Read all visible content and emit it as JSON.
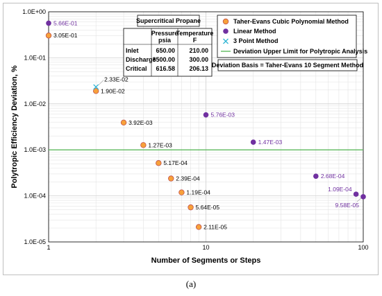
{
  "chart_data": {
    "type": "scatter",
    "xlabel": "Number of Segments or Steps",
    "ylabel": "Polytropic Efficiency  Deviation, %",
    "x_scale": "log",
    "y_scale": "log",
    "xlim": [
      1,
      100
    ],
    "ylim": [
      1e-05,
      1
    ],
    "x_ticks": [
      "1",
      "10",
      "100"
    ],
    "y_ticks": [
      "1.0E+00",
      "1.0E-01",
      "1.0E-02",
      "1.0E-03",
      "1.0E-04",
      "1.0E-05"
    ],
    "grid": true,
    "legend_position": "top-right",
    "series": [
      {
        "name": "Taher-Evans Cubic Polynomial Method",
        "marker": "circle",
        "color": "#f7a13a",
        "label_color": "#000000",
        "points": [
          {
            "x": 1,
            "y": 0.305,
            "label": "3.05E-01"
          },
          {
            "x": 2,
            "y": 0.019,
            "label": "1.90E-02"
          },
          {
            "x": 3,
            "y": 0.00392,
            "label": "3.92E-03"
          },
          {
            "x": 4,
            "y": 0.00127,
            "label": "1.27E-03"
          },
          {
            "x": 5,
            "y": 0.000517,
            "label": "5.17E-04"
          },
          {
            "x": 6,
            "y": 0.000239,
            "label": "2.39E-04"
          },
          {
            "x": 7,
            "y": 0.000119,
            "label": "1.19E-04"
          },
          {
            "x": 8,
            "y": 5.64e-05,
            "label": "5.64E-05"
          },
          {
            "x": 9,
            "y": 2.11e-05,
            "label": "2.11E-05"
          }
        ]
      },
      {
        "name": "Linear Method",
        "marker": "circle",
        "color": "#7030a0",
        "label_color": "#7030a0",
        "points": [
          {
            "x": 1,
            "y": 0.566,
            "label": "5.66E-01"
          },
          {
            "x": 10,
            "y": 0.00576,
            "label": "5.76E-03"
          },
          {
            "x": 20,
            "y": 0.00147,
            "label": "1.47E-03"
          },
          {
            "x": 50,
            "y": 0.000268,
            "label": "2.68E-04"
          },
          {
            "x": 90,
            "y": 0.000109,
            "label": "1.09E-04"
          },
          {
            "x": 100,
            "y": 9.58e-05,
            "label": "9.58E-05"
          }
        ]
      },
      {
        "name": "3 Point Method",
        "marker": "x",
        "color": "#2fb5d4",
        "label_color": "#000000",
        "points": [
          {
            "x": 2,
            "y": 0.0233,
            "label": "2.33E-02"
          }
        ]
      }
    ],
    "reference_line": {
      "name": "Deviation Upper Limit for Polytropic Analysis",
      "y": 0.001,
      "color": "#5cb85c"
    },
    "annotation_box": "Deviation Basis = Taher-Evans 10 Segment Method",
    "table": {
      "title": "Supercritical Propane",
      "headers": [
        "",
        "Pressure\npsia",
        "Temperature\nF"
      ],
      "header_line1": [
        "",
        "Pressure",
        "Temperature"
      ],
      "header_line2": [
        "",
        "psia",
        "F"
      ],
      "rows": [
        [
          "Inlet",
          "650.00",
          "210.00"
        ],
        [
          "Discharge",
          "3500.00",
          "300.00"
        ],
        [
          "Critical",
          "616.58",
          "206.13"
        ]
      ]
    },
    "caption": "(a)"
  }
}
